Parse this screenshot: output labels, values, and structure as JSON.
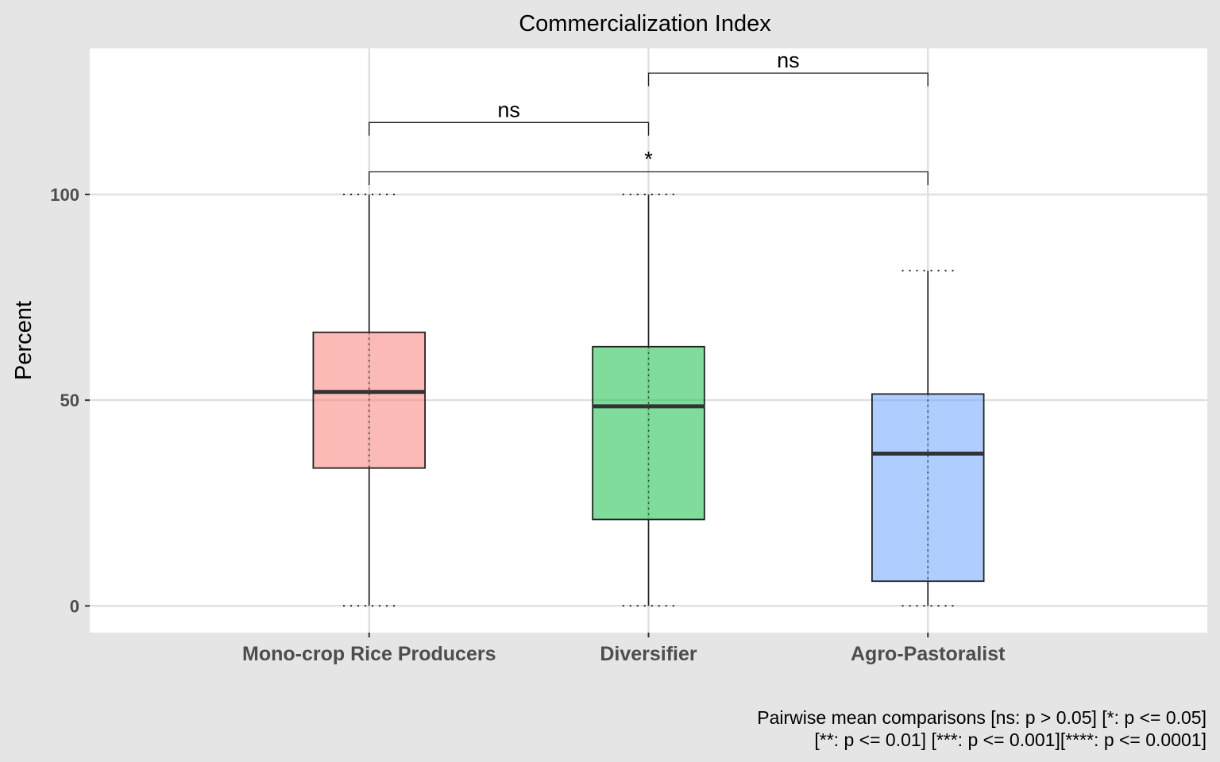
{
  "chart_data": {
    "type": "box",
    "title": "Commercialization Index",
    "xlabel": "",
    "ylabel": "Percent",
    "ylim": [
      -6.5,
      135.5
    ],
    "yticks": [
      0,
      50,
      100
    ],
    "ytick_labels": [
      "0",
      "50",
      "100"
    ],
    "grid": true,
    "legend": "none",
    "categories": [
      "Mono-crop Rice Producers",
      "Diversifier",
      "Agro-Pastoralist"
    ],
    "boxes": [
      {
        "category": "Mono-crop Rice Producers",
        "whisker_low": 0,
        "q1": 33.5,
        "median": 52,
        "q3": 66.5,
        "whisker_high": 100,
        "color": "#F8766D"
      },
      {
        "category": "Diversifier",
        "whisker_low": 0,
        "q1": 21,
        "median": 48.5,
        "q3": 63,
        "whisker_high": 100,
        "color": "#00BA38"
      },
      {
        "category": "Agro-Pastoralist",
        "whisker_low": 0,
        "q1": 6,
        "median": 37,
        "q3": 51.5,
        "whisker_high": 81.5,
        "color": "#619CFF"
      }
    ],
    "comparisons": [
      {
        "groups": [
          "Mono-crop Rice Producers",
          "Diversifier"
        ],
        "label": "ns",
        "level": 117.5
      },
      {
        "groups": [
          "Diversifier",
          "Agro-Pastoralist"
        ],
        "label": "ns",
        "level": 129.5
      },
      {
        "groups": [
          "Mono-crop Rice Producers",
          "Agro-Pastoralist"
        ],
        "label": "*",
        "level": 105.5
      }
    ],
    "caption": [
      "Pairwise mean comparisons [ns: p > 0.05] [*: p <= 0.05]",
      "[**: p <= 0.01] [***: p <= 0.001][****: p <= 0.0001]"
    ]
  }
}
